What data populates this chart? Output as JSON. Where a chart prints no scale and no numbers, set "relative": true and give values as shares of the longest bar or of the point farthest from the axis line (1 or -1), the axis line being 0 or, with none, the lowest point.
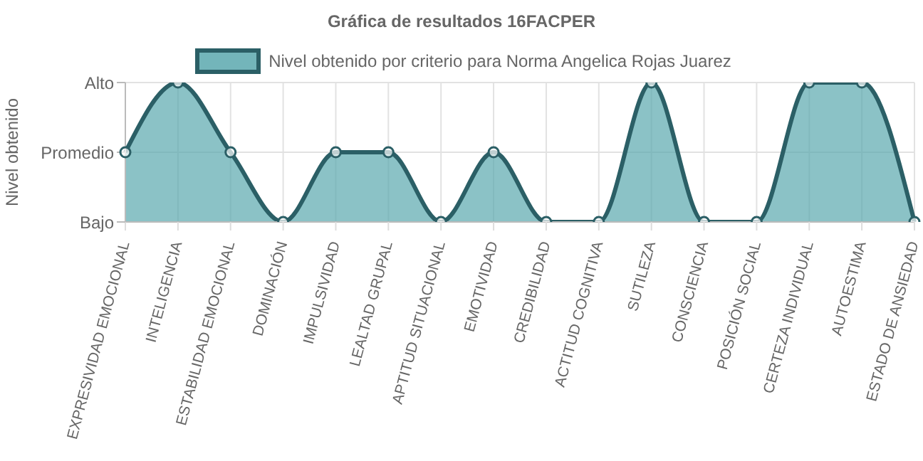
{
  "chart_data": {
    "type": "area",
    "title": "Gráfica de resultados 16FACPER",
    "ylabel": "Nivel obtenido",
    "categories": [
      "EXPRESIVIDAD EMOCIONAL",
      "INTELIGENCIA",
      "ESTABILIDAD EMOCIONAL",
      "DOMINACIÓN",
      "IMPULSIVIDAD",
      "LEALTAD GRUPAL",
      "APTITUD SITUACIONAL",
      "EMOTIVIDAD",
      "CREDIBILIDAD",
      "ACTITUD COGNITIVA",
      "SUTILEZA",
      "CONSCIENCIA",
      "POSICIÓN SOCIAL",
      "CERTEZA INDIVIDUAL",
      "AUTOESTIMA",
      "ESTADO DE ANSIEDAD"
    ],
    "series": [
      {
        "name": "Nivel obtenido por criterio para Norma Angelica Rojas Juarez",
        "color": "#2b5f66",
        "values": [
          0.5,
          1,
          0.5,
          0,
          0.5,
          0.5,
          0,
          0.5,
          0,
          0,
          1,
          0,
          0,
          1,
          1,
          0
        ]
      }
    ],
    "relative": true,
    "annotations": [
      "Alto",
      "Promedio",
      "Bajo"
    ],
    "grid": true,
    "legend": "top",
    "marker": "circle"
  }
}
